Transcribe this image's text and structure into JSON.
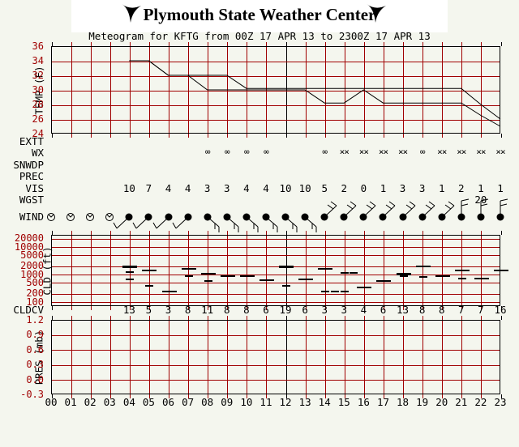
{
  "header": {
    "title": "Plymouth State Weather Center",
    "logo": "psu-bird"
  },
  "subtitle": "Meteogram for KFTG from 00Z 17 APR 13 to 2300Z 17 APR 13",
  "colors": {
    "grid_red": "#a00000",
    "trace_black": "#000000",
    "background": "#f4f6ee",
    "title_bg": "#ffffff"
  },
  "chart_data": {
    "type": "line",
    "title": "Meteogram for KFTG from 00Z 17 APR 13 to 2300Z 17 APR 13",
    "station": "KFTG",
    "x_hours": [
      "00",
      "01",
      "02",
      "03",
      "04",
      "05",
      "06",
      "07",
      "08",
      "09",
      "10",
      "11",
      "12",
      "13",
      "14",
      "15",
      "16",
      "17",
      "18",
      "19",
      "20",
      "21",
      "22",
      "23"
    ],
    "temp_panel": {
      "ylabel": "TEMP (F)",
      "yticks": [
        "36",
        "34",
        "32",
        "30",
        "28",
        "26",
        "24"
      ],
      "ylim": [
        24,
        36
      ],
      "series": [
        {
          "name": "temperature",
          "values": [
            null,
            null,
            null,
            null,
            34,
            34,
            32,
            32,
            32,
            32,
            30.2,
            30.2,
            30.2,
            30.2,
            30.2,
            30.2,
            30.2,
            30.2,
            30.2,
            30.2,
            30.2,
            30.2,
            28,
            26
          ]
        },
        {
          "name": "dewpoint",
          "values": [
            null,
            null,
            null,
            null,
            34,
            34,
            32,
            32,
            30,
            30,
            30,
            30,
            30,
            30,
            28.2,
            28.2,
            30,
            28.2,
            28.2,
            28.2,
            28.2,
            28.2,
            26.5,
            25
          ]
        }
      ]
    },
    "rows": {
      "extt": {
        "label": "EXTT",
        "values": [
          "",
          "",
          "",
          "",
          "",
          "",
          "",
          "",
          "",
          "",
          "",
          "",
          "",
          "",
          "",
          "",
          "",
          "",
          "",
          "",
          "",
          "",
          "",
          ""
        ]
      },
      "wx": {
        "label": "WX",
        "values": [
          "",
          "",
          "",
          "",
          "",
          "",
          "",
          "",
          "∞",
          "∞",
          "∞",
          "∞",
          "",
          "",
          "∞",
          "××",
          "××",
          "××",
          "××",
          "∞",
          "××",
          "××",
          "××",
          "××"
        ]
      },
      "snwdp": {
        "label": "SNWDP",
        "values": [
          "",
          "",
          "",
          "",
          "",
          "",
          "",
          "",
          "",
          "",
          "",
          "",
          "",
          "",
          "",
          "",
          "",
          "",
          "",
          "",
          "",
          "",
          "",
          ""
        ]
      },
      "prec": {
        "label": "PREC",
        "values": [
          "",
          "",
          "",
          "",
          "",
          "",
          "",
          "",
          "",
          "",
          "",
          "",
          "",
          "",
          "",
          "",
          "",
          "",
          "",
          "",
          "",
          "",
          "",
          ""
        ]
      },
      "vis": {
        "label": "VIS",
        "values": [
          "",
          "",
          "",
          "",
          "10",
          "7",
          "4",
          "4",
          "3",
          "3",
          "4",
          "4",
          "10",
          "10",
          "5",
          "2",
          "0",
          "1",
          "3",
          "3",
          "1",
          "2",
          "1",
          "1"
        ]
      },
      "wgst": {
        "label": "WGST",
        "values": [
          "",
          "",
          "",
          "",
          "",
          "",
          "",
          "",
          "",
          "",
          "",
          "",
          "",
          "",
          "",
          "",
          "",
          "",
          "",
          "",
          "",
          "",
          "20",
          ""
        ]
      },
      "wind": {
        "label": "WIND",
        "barbs": [
          "calm",
          "calm",
          "calm",
          "calm",
          "sw",
          "sw",
          "sw",
          "sw",
          "se",
          "se",
          "se",
          "se",
          "se",
          "se",
          "ne",
          "ne",
          "ne",
          "ne",
          "ne",
          "ne",
          "ne",
          "n",
          "n",
          "n"
        ]
      }
    },
    "cld_panel": {
      "ylabel": "CLD (ft)",
      "yticks": [
        "20000",
        "10000",
        "5000",
        "2000",
        "1000",
        "500",
        "200",
        "100"
      ],
      "marks": [
        [
          4,
          2000,
          "b"
        ],
        [
          4,
          1300,
          "s"
        ],
        [
          4,
          700,
          "s"
        ],
        [
          5,
          1500,
          "n"
        ],
        [
          5,
          400,
          "s"
        ],
        [
          6,
          250,
          "n"
        ],
        [
          7,
          1700,
          "n"
        ],
        [
          7,
          900,
          "s"
        ],
        [
          8,
          1100,
          "n"
        ],
        [
          8,
          600,
          "s"
        ],
        [
          9,
          900,
          "n"
        ],
        [
          10,
          900,
          "n"
        ],
        [
          11,
          650,
          "n"
        ],
        [
          12,
          2000,
          "b"
        ],
        [
          12,
          400,
          "s"
        ],
        [
          13,
          700,
          "n"
        ],
        [
          14,
          1700,
          "n"
        ],
        [
          14,
          250,
          "s"
        ],
        [
          14.5,
          250,
          "s"
        ],
        [
          15,
          1200,
          "s"
        ],
        [
          15.45,
          1200,
          "s"
        ],
        [
          15,
          250,
          "s"
        ],
        [
          16,
          350,
          "n"
        ],
        [
          17,
          600,
          "n"
        ],
        [
          18,
          1100,
          "b"
        ],
        [
          18,
          900,
          "s"
        ],
        [
          19,
          2100,
          "n"
        ],
        [
          19,
          850,
          "s"
        ],
        [
          20,
          900,
          "n"
        ],
        [
          21,
          1500,
          "n"
        ],
        [
          21,
          750,
          "s"
        ],
        [
          22,
          750,
          "n"
        ],
        [
          23,
          1500,
          "n"
        ]
      ]
    },
    "cldcv_row": {
      "label": "CLDCV",
      "values": [
        "",
        "",
        "",
        "",
        "13",
        "5",
        "3",
        "8",
        "11",
        "8",
        "8",
        "6",
        "19",
        "6",
        "3",
        "3",
        "4",
        "6",
        "13",
        "8",
        "8",
        "7",
        "7",
        "16"
      ]
    },
    "pres_panel": {
      "ylabel": "PRES (mb)",
      "yticks": [
        "1.2",
        "0.9",
        "0.6",
        "0.3",
        "0.0",
        "-0.3"
      ],
      "ylim": [
        -0.3,
        1.2
      ],
      "series": []
    }
  }
}
